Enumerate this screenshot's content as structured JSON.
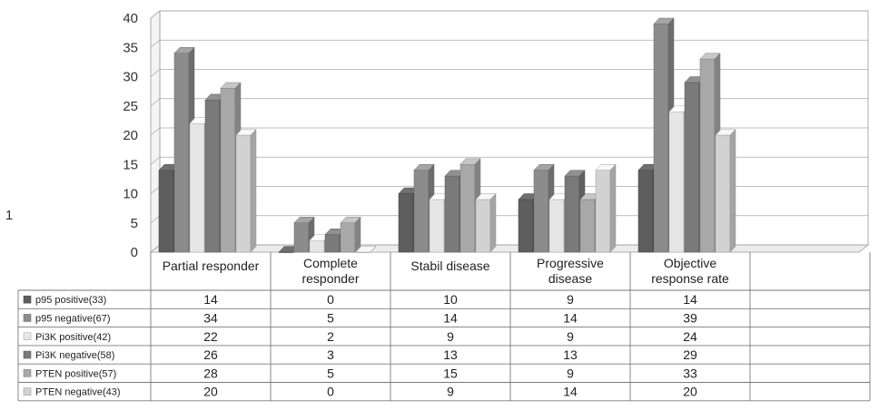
{
  "chart_data": {
    "type": "bar",
    "style": "3d-clustered-column-with-data-table",
    "side_label": "1",
    "categories": [
      [
        "Partial responder"
      ],
      [
        "Complete",
        "responder"
      ],
      [
        "Stabil disease"
      ],
      [
        "Progressive",
        "disease"
      ],
      [
        "Objective",
        "response rate"
      ]
    ],
    "series": [
      {
        "name": "p95 positive(33)",
        "color": "#5e5e5e",
        "values": [
          14,
          0,
          10,
          9,
          14
        ]
      },
      {
        "name": "p95 negative(67)",
        "color": "#8c8c8c",
        "values": [
          34,
          5,
          14,
          14,
          39
        ]
      },
      {
        "name": "Pi3K positive(42)",
        "color": "#e6e6e6",
        "values": [
          22,
          2,
          9,
          9,
          24
        ]
      },
      {
        "name": "Pi3K negative(58)",
        "color": "#7a7a7a",
        "values": [
          26,
          3,
          13,
          13,
          29
        ]
      },
      {
        "name": "PTEN positive(57)",
        "color": "#a8a8a8",
        "values": [
          28,
          5,
          15,
          9,
          33
        ]
      },
      {
        "name": "PTEN negative(43)",
        "color": "#d2d2d2",
        "values": [
          20,
          0,
          9,
          14,
          20
        ]
      }
    ],
    "ylim": [
      0,
      40
    ],
    "yticks": [
      0,
      5,
      10,
      15,
      20,
      25,
      30,
      35,
      40
    ],
    "grid": true,
    "legend": "data-table-rows"
  }
}
